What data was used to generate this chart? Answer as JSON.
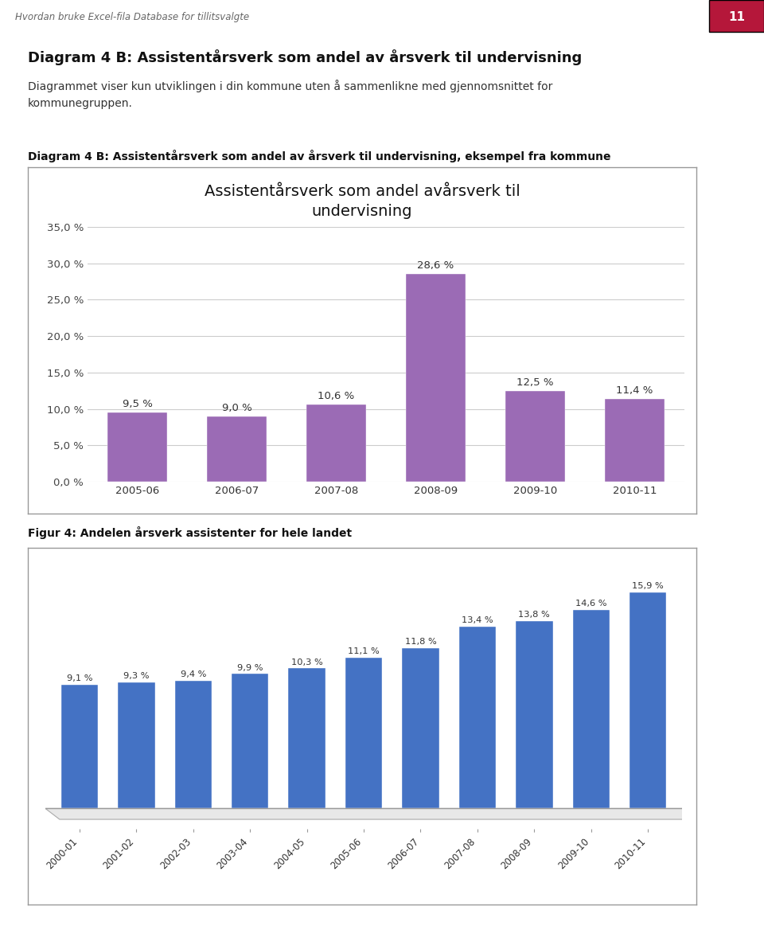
{
  "header_text": "Hvordan bruke Excel-fila Database for tillitsvalgte",
  "page_number": "11",
  "title1_bold": "Diagram 4 B: Assistentårsverk som andel av årsverk til undervisning",
  "subtitle1": "Diagrammet viser kun utviklingen i din kommune uten å sammenlikne med gjennomsnittet for\nkommunegruppen.",
  "caption1": "Diagram 4 B: Assistentårsverk som andel av årsverk til undervisning, eksempel fra kommune",
  "chart1_title": "Assistentårsverk som andel avårsverk til\nundervisning",
  "chart1_categories": [
    "2005-06",
    "2006-07",
    "2007-08",
    "2008-09",
    "2009-10",
    "2010-11"
  ],
  "chart1_values": [
    9.5,
    9.0,
    10.6,
    28.6,
    12.5,
    11.4
  ],
  "chart1_bar_color": "#9B6BB5",
  "chart1_ylim": [
    0,
    35
  ],
  "chart1_yticks": [
    0,
    5,
    10,
    15,
    20,
    25,
    30,
    35
  ],
  "chart1_ytick_labels": [
    "0,0 %",
    "5,0 %",
    "10,0 %",
    "15,0 %",
    "20,0 %",
    "25,0 %",
    "30,0 %",
    "35,0 %"
  ],
  "caption2": "Figur 4: Andelen årsverk assistenter for hele landet",
  "chart2_categories": [
    "2000-01",
    "2001-02",
    "2002-03",
    "2003-04",
    "2004-05",
    "2005-06",
    "2006-07",
    "2007-08",
    "2008-09",
    "2009-10",
    "2010-11"
  ],
  "chart2_values": [
    9.1,
    9.3,
    9.4,
    9.9,
    10.3,
    11.1,
    11.8,
    13.4,
    13.8,
    14.6,
    15.9
  ],
  "chart2_bar_color": "#4472C4",
  "background_color": "#FFFFFF",
  "page_num_bg": "#B5173A",
  "chart_border_color": "#999999",
  "grid_color": "#CCCCCC",
  "text_color": "#111111",
  "label_color": "#333333"
}
